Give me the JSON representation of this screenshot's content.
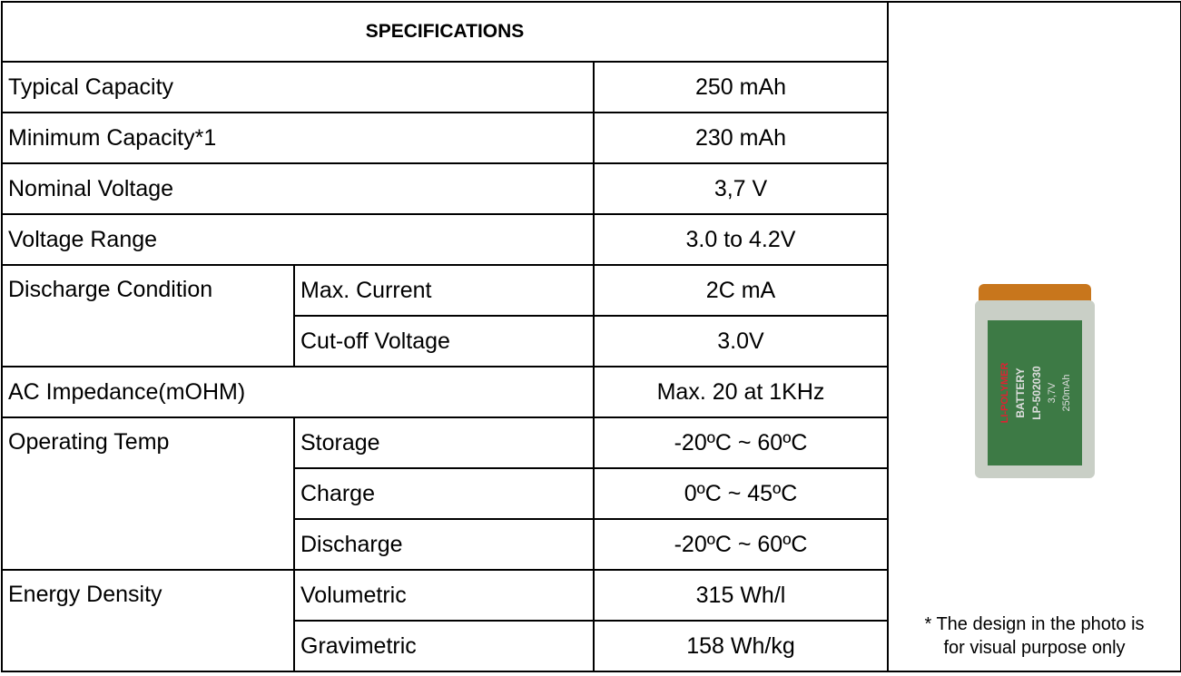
{
  "table": {
    "header": "SPECIFICATIONS",
    "rows": [
      [
        "Typical Capacity",
        "250  mAh"
      ],
      [
        "Minimum Capacity*1",
        "230  mAh"
      ],
      [
        "Nominal Voltage",
        "3,7  V"
      ],
      [
        "Voltage Range",
        "3.0 to 4.2V"
      ],
      [
        "Discharge Condition",
        "Max. Current",
        "2C mA"
      ],
      [
        "Cut-off Voltage",
        "3.0V"
      ],
      [
        "AC Impedance(mOHM)",
        "Max. 20 at 1KHz"
      ],
      [
        "Operating Temp",
        "Storage",
        "-20ºC ~ 60ºC"
      ],
      [
        "Charge",
        "0ºC ~ 45ºC"
      ],
      [
        "Discharge",
        "-20ºC ~ 60ºC"
      ],
      [
        "Energy Density",
        "Volumetric",
        "315  Wh/l"
      ],
      [
        "Gravimetric",
        "158  Wh/kg"
      ]
    ],
    "photo": {
      "labels": [
        "LI-POLYMER",
        "BATTERY",
        "LP-502030",
        "3,7V",
        "250mAh"
      ]
    },
    "note": "*  The design in the photo is for visual purpose only"
  }
}
